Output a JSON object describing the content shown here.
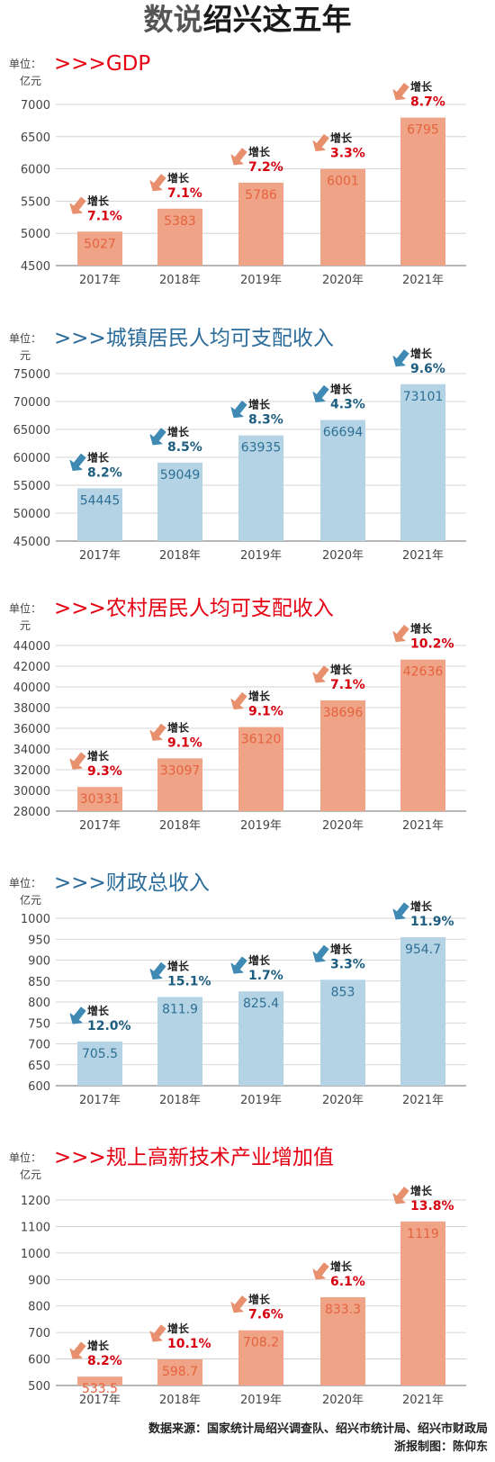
{
  "title": {
    "part1": "数说",
    "part2": "绍兴这五年"
  },
  "colors": {
    "orange": "#efa387",
    "blue": "#b4d4e6",
    "orange_text": "#e5633e",
    "blue_text": "#2e6f93",
    "red_title": "#e60012",
    "blue_title": "#2b6c9b",
    "pct_red": "#d7000f",
    "pct_blue": "#1c5d80"
  },
  "footer": {
    "source": "数据来源：国家统计局绍兴调查队、绍兴市统计局、绍兴市财政局",
    "credit": "浙报制图：陈仰东"
  },
  "chart_data": [
    {
      "type": "bar",
      "prefix": ">>>",
      "title": "GDP",
      "title_color": "red",
      "bar_color": "orange",
      "unit_label": "单位：",
      "unit": "亿元",
      "categories": [
        "2017年",
        "2018年",
        "2019年",
        "2020年",
        "2021年"
      ],
      "values": [
        5027,
        5383,
        5786,
        6001,
        6795
      ],
      "value_labels": [
        "5027",
        "5383",
        "5786",
        "6001",
        "6795"
      ],
      "growth_label": "增长",
      "growth": [
        "7.1%",
        "7.1%",
        "7.2%",
        "3.3%",
        "8.7%"
      ],
      "ylim": [
        4500,
        7000
      ],
      "yticks": [
        "4500",
        "5000",
        "5500",
        "6000",
        "6500",
        "7000"
      ]
    },
    {
      "type": "bar",
      "prefix": ">>>",
      "title": "城镇居民人均可支配收入",
      "title_color": "blue",
      "bar_color": "blue",
      "unit_label": "单位：",
      "unit": "元",
      "categories": [
        "2017年",
        "2018年",
        "2019年",
        "2020年",
        "2021年"
      ],
      "values": [
        54445,
        59049,
        63935,
        66694,
        73101
      ],
      "value_labels": [
        "54445",
        "59049",
        "63935",
        "66694",
        "73101"
      ],
      "growth_label": "增长",
      "growth": [
        "8.2%",
        "8.5%",
        "8.3%",
        "4.3%",
        "9.6%"
      ],
      "ylim": [
        45000,
        75000
      ],
      "yticks": [
        "45000",
        "50000",
        "55000",
        "60000",
        "65000",
        "70000",
        "75000"
      ]
    },
    {
      "type": "bar",
      "prefix": ">>>",
      "title": "农村居民人均可支配收入",
      "title_color": "red",
      "bar_color": "orange",
      "unit_label": "单位：",
      "unit": "元",
      "categories": [
        "2017年",
        "2018年",
        "2019年",
        "2020年",
        "2021年"
      ],
      "values": [
        30331,
        33097,
        36120,
        38696,
        42636
      ],
      "value_labels": [
        "30331",
        "33097",
        "36120",
        "38696",
        "42636"
      ],
      "growth_label": "增长",
      "growth": [
        "9.3%",
        "9.1%",
        "9.1%",
        "7.1%",
        "10.2%"
      ],
      "ylim": [
        28000,
        44000
      ],
      "yticks": [
        "28000",
        "30000",
        "32000",
        "34000",
        "36000",
        "38000",
        "40000",
        "42000",
        "44000"
      ]
    },
    {
      "type": "bar",
      "prefix": ">>>",
      "title": "财政总收入",
      "title_color": "blue",
      "bar_color": "blue",
      "unit_label": "单位：",
      "unit": "亿元",
      "categories": [
        "2017年",
        "2018年",
        "2019年",
        "2020年",
        "2021年"
      ],
      "values": [
        705.5,
        811.9,
        825.4,
        853,
        954.7
      ],
      "value_labels": [
        "705.5",
        "811.9",
        "825.4",
        "853",
        "954.7"
      ],
      "growth_label": "增长",
      "growth": [
        "12.0%",
        "15.1%",
        "1.7%",
        "3.3%",
        "11.9%"
      ],
      "ylim": [
        600,
        1000
      ],
      "yticks": [
        "600",
        "650",
        "700",
        "750",
        "800",
        "850",
        "900",
        "950",
        "1000"
      ]
    },
    {
      "type": "bar",
      "prefix": ">>>",
      "title": "规上高新技术产业增加值",
      "title_color": "red",
      "bar_color": "orange",
      "unit_label": "单位：",
      "unit": "亿元",
      "categories": [
        "2017年",
        "2018年",
        "2019年",
        "2020年",
        "2021年"
      ],
      "values": [
        533.5,
        598.7,
        708.2,
        833.3,
        1119
      ],
      "value_labels": [
        "533.5",
        "598.7",
        "708.2",
        "833.3",
        "1119"
      ],
      "growth_label": "增长",
      "growth": [
        "8.2%",
        "10.1%",
        "7.6%",
        "6.1%",
        "13.8%"
      ],
      "ylim": [
        500,
        1200
      ],
      "yticks": [
        "500",
        "600",
        "700",
        "800",
        "900",
        "1000",
        "1100",
        "1200"
      ]
    }
  ]
}
